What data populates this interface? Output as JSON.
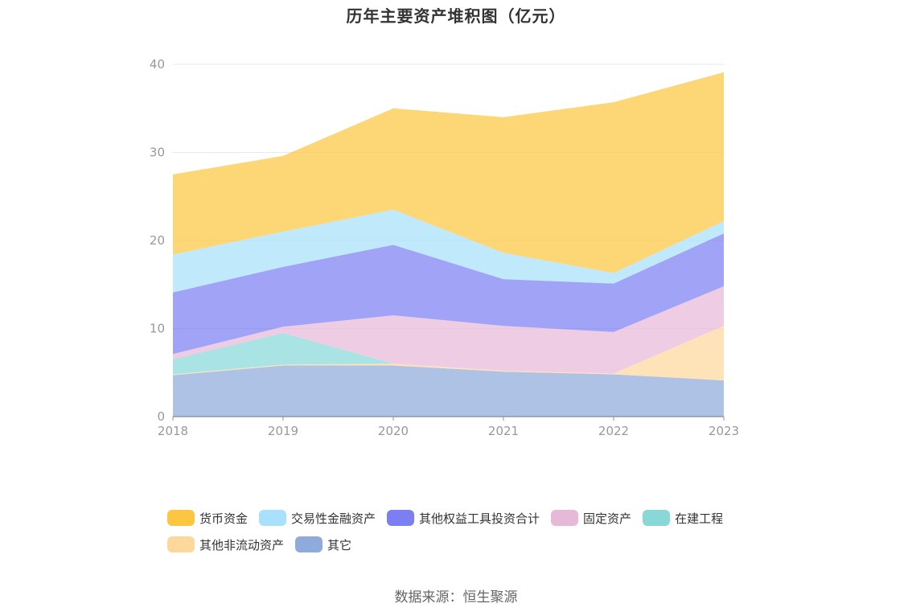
{
  "chart_data": {
    "type": "area",
    "stacked": true,
    "title": "历年主要资产堆积图（亿元）",
    "xlabel": "",
    "ylabel": "",
    "ylim": [
      0,
      40
    ],
    "yticks": [
      0,
      10,
      20,
      30,
      40
    ],
    "grid": true,
    "legend_position": "bottom",
    "categories": [
      "2018",
      "2019",
      "2020",
      "2021",
      "2022",
      "2023"
    ],
    "series": [
      {
        "name": "其它",
        "color": "#8eabdb",
        "values": [
          4.7,
          5.8,
          5.8,
          5.1,
          4.8,
          4.1
        ]
      },
      {
        "name": "其他非流动资产",
        "color": "#fdd89d",
        "values": [
          0.1,
          0.1,
          0.2,
          0.1,
          0.1,
          6.2
        ]
      },
      {
        "name": "在建工程",
        "color": "#88d8d8",
        "values": [
          1.7,
          3.6,
          0.0,
          0.0,
          0.0,
          0.0
        ]
      },
      {
        "name": "固定资产",
        "color": "#e7b9d9",
        "values": [
          0.6,
          0.7,
          5.5,
          5.1,
          4.7,
          4.5
        ]
      },
      {
        "name": "其他权益工具投资合计",
        "color": "#7b7ff2",
        "values": [
          7.0,
          6.8,
          8.0,
          5.3,
          5.5,
          6.0
        ]
      },
      {
        "name": "交易性金融资产",
        "color": "#a9e0fb",
        "values": [
          4.3,
          4.0,
          4.0,
          3.0,
          1.2,
          1.4
        ]
      },
      {
        "name": "货币资金",
        "color": "#fcc640",
        "values": [
          9.1,
          8.6,
          11.5,
          15.4,
          19.4,
          16.9
        ]
      }
    ]
  },
  "legend": {
    "row1": [
      {
        "label": "货币资金",
        "color": "#fcc640"
      },
      {
        "label": "交易性金融资产",
        "color": "#a9e0fb"
      },
      {
        "label": "其他权益工具投资合计",
        "color": "#7b7ff2"
      },
      {
        "label": "固定资产",
        "color": "#e7b9d9"
      },
      {
        "label": "在建工程",
        "color": "#88d8d8"
      }
    ],
    "row2": [
      {
        "label": "其他非流动资产",
        "color": "#fdd89d"
      },
      {
        "label": "其它",
        "color": "#8eabdb"
      }
    ]
  },
  "source": "数据来源：恒生聚源"
}
